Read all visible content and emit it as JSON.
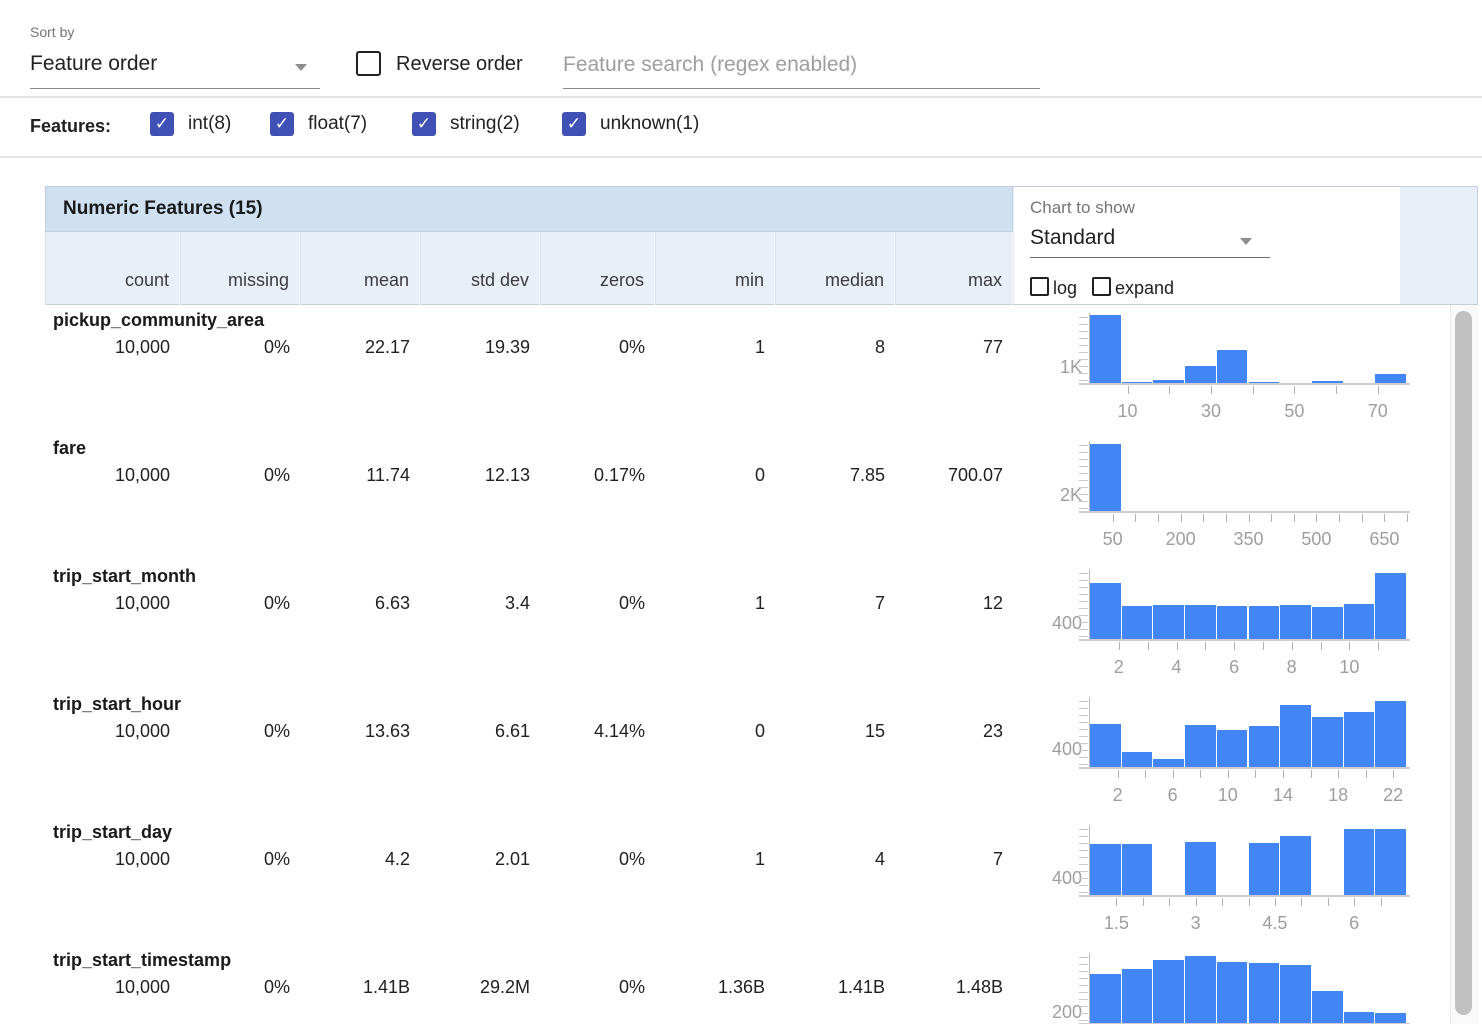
{
  "toolbar": {
    "sort_by_label": "Sort by",
    "sort_by_value": "Feature order",
    "reverse_order_label": "Reverse order",
    "search_placeholder": "Feature search (regex enabled)"
  },
  "features_bar": {
    "label": "Features:",
    "filters": [
      {
        "label": "int(8)",
        "checked": true
      },
      {
        "label": "float(7)",
        "checked": true
      },
      {
        "label": "string(2)",
        "checked": true
      },
      {
        "label": "unknown(1)",
        "checked": true
      }
    ]
  },
  "table": {
    "title": "Numeric Features (15)",
    "columns": [
      "count",
      "missing",
      "mean",
      "std dev",
      "zeros",
      "min",
      "median",
      "max"
    ],
    "chart_controls": {
      "label": "Chart to show",
      "value": "Standard",
      "log_label": "log",
      "expand_label": "expand"
    },
    "rows": [
      {
        "name": "pickup_community_area",
        "stats": [
          "10,000",
          "0%",
          "22.17",
          "19.39",
          "0%",
          "1",
          "8",
          "77"
        ]
      },
      {
        "name": "fare",
        "stats": [
          "10,000",
          "0%",
          "11.74",
          "12.13",
          "0.17%",
          "0",
          "7.85",
          "700.07"
        ]
      },
      {
        "name": "trip_start_month",
        "stats": [
          "10,000",
          "0%",
          "6.63",
          "3.4",
          "0%",
          "1",
          "7",
          "12"
        ]
      },
      {
        "name": "trip_start_hour",
        "stats": [
          "10,000",
          "0%",
          "13.63",
          "6.61",
          "4.14%",
          "0",
          "15",
          "23"
        ]
      },
      {
        "name": "trip_start_day",
        "stats": [
          "10,000",
          "0%",
          "4.2",
          "2.01",
          "0%",
          "1",
          "4",
          "7"
        ]
      },
      {
        "name": "trip_start_timestamp",
        "stats": [
          "10,000",
          "0%",
          "1.41B",
          "29.2M",
          "0%",
          "1.36B",
          "1.41B",
          "1.48B"
        ]
      }
    ]
  },
  "chart_data": [
    {
      "type": "bar",
      "feature": "pickup_community_area",
      "title": "Histogram of pickup_community_area (10 buckets)",
      "x_range": [
        1,
        77
      ],
      "values": [
        4300,
        60,
        170,
        1050,
        2050,
        60,
        30,
        150,
        30,
        580
      ],
      "y_max": 4400,
      "y_axis_label": "1K",
      "y_axis_label_value": 1000,
      "x_ticks": [
        10,
        20,
        30,
        40,
        50,
        60,
        70
      ],
      "x_tick_labels": [
        10,
        30,
        50,
        70
      ]
    },
    {
      "type": "bar",
      "feature": "fare",
      "title": "Histogram of fare (10 buckets)",
      "x_range": [
        0,
        700
      ],
      "values": [
        8150,
        30,
        12,
        6,
        4,
        3,
        2,
        2,
        1,
        1
      ],
      "y_max": 8500,
      "y_axis_label": "2K",
      "y_axis_label_value": 2000,
      "x_ticks": [
        50,
        100,
        150,
        200,
        250,
        300,
        350,
        400,
        450,
        500,
        550,
        600,
        650,
        700
      ],
      "x_tick_labels": [
        50,
        200,
        350,
        500,
        650
      ]
    },
    {
      "type": "bar",
      "feature": "trip_start_month",
      "title": "Histogram of trip_start_month (10 buckets)",
      "x_range": [
        1,
        12
      ],
      "values": [
        1400,
        830,
        850,
        840,
        820,
        820,
        840,
        790,
        880,
        1650
      ],
      "y_max": 1750,
      "y_axis_label": "400",
      "y_axis_label_value": 400,
      "x_ticks": [
        2,
        3,
        4,
        5,
        6,
        7,
        8,
        9,
        10,
        11
      ],
      "x_tick_labels": [
        2,
        4,
        6,
        8,
        10
      ]
    },
    {
      "type": "bar",
      "feature": "trip_start_hour",
      "title": "Histogram of trip_start_hour (10 buckets)",
      "x_range": [
        0,
        23
      ],
      "values": [
        965,
        340,
        190,
        940,
        830,
        920,
        1410,
        1130,
        1240,
        1490
      ],
      "y_max": 1580,
      "y_axis_label": "400",
      "y_axis_label_value": 400,
      "x_ticks": [
        2,
        4,
        6,
        8,
        10,
        12,
        14,
        16,
        18,
        20,
        22
      ],
      "x_tick_labels": [
        2,
        6,
        10,
        14,
        18,
        22
      ]
    },
    {
      "type": "bar",
      "feature": "trip_start_day",
      "title": "Histogram of trip_start_day (10 buckets)",
      "x_range": [
        1,
        7
      ],
      "values": [
        1190,
        1190,
        0,
        1245,
        0,
        1210,
        1380,
        0,
        1550,
        1550
      ],
      "y_max": 1640,
      "y_axis_label": "400",
      "y_axis_label_value": 400,
      "x_ticks": [
        1.5,
        2,
        2.5,
        3,
        3.5,
        4,
        4.5,
        5,
        5.5,
        6,
        6.5
      ],
      "x_tick_labels": [
        1.5,
        3,
        4.5,
        6
      ]
    },
    {
      "type": "bar",
      "feature": "trip_start_timestamp",
      "title": "Histogram of trip_start_timestamp (10 buckets)",
      "x_range": [
        1360000000,
        1480000000
      ],
      "values": [
        890,
        990,
        1160,
        1220,
        1120,
        1090,
        1060,
        580,
        200,
        175
      ],
      "y_max": 1280,
      "y_axis_label": "200",
      "y_axis_label_value": 200,
      "x_ticks": [],
      "x_tick_labels": []
    }
  ]
}
